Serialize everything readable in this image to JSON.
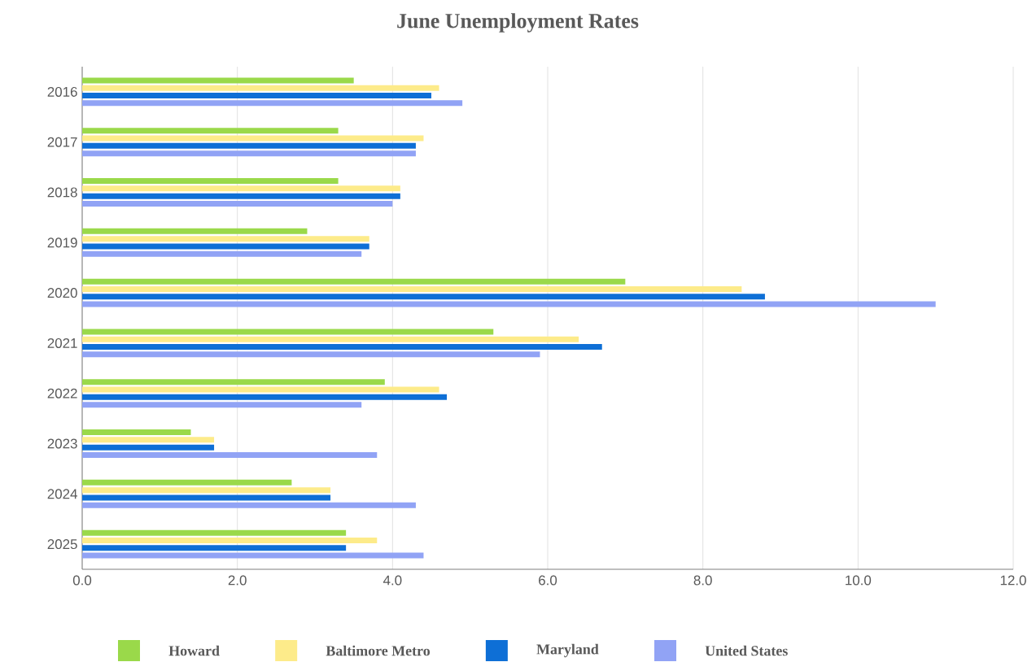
{
  "chart_data": {
    "type": "bar",
    "orientation": "horizontal",
    "title": "June Unemployment Rates",
    "categories": [
      "2016",
      "2017",
      "2018",
      "2019",
      "2020",
      "2021",
      "2022",
      "2023",
      "2024",
      "2025"
    ],
    "series": [
      {
        "name": "Howard",
        "color": "#9ad94a",
        "values": [
          3.5,
          3.3,
          3.3,
          2.9,
          7.0,
          5.3,
          3.9,
          1.4,
          2.7,
          3.4
        ]
      },
      {
        "name": "Baltimore Metro",
        "color": "#fdeb8a",
        "values": [
          4.6,
          4.4,
          4.1,
          3.7,
          8.5,
          6.4,
          4.6,
          1.7,
          3.2,
          3.8
        ]
      },
      {
        "name": "Maryland",
        "color": "#0e6fd6",
        "values": [
          4.5,
          4.3,
          4.1,
          3.7,
          8.8,
          6.7,
          4.7,
          1.7,
          3.2,
          3.4
        ]
      },
      {
        "name": "United States",
        "color": "#91a3f5",
        "values": [
          4.9,
          4.3,
          4.0,
          3.6,
          11.0,
          5.9,
          3.6,
          3.8,
          4.3,
          4.4
        ]
      }
    ],
    "xlim": [
      0,
      12
    ],
    "xticks": [
      {
        "value": 0,
        "label": "0.0"
      },
      {
        "value": 2,
        "label": "2.0"
      },
      {
        "value": 4,
        "label": "4.0"
      },
      {
        "value": 6,
        "label": "6.0"
      },
      {
        "value": 8,
        "label": "8.0"
      },
      {
        "value": 10,
        "label": "10.0"
      },
      {
        "value": 12,
        "label": "12.0"
      }
    ],
    "grid": "x",
    "legend": "bottom"
  }
}
